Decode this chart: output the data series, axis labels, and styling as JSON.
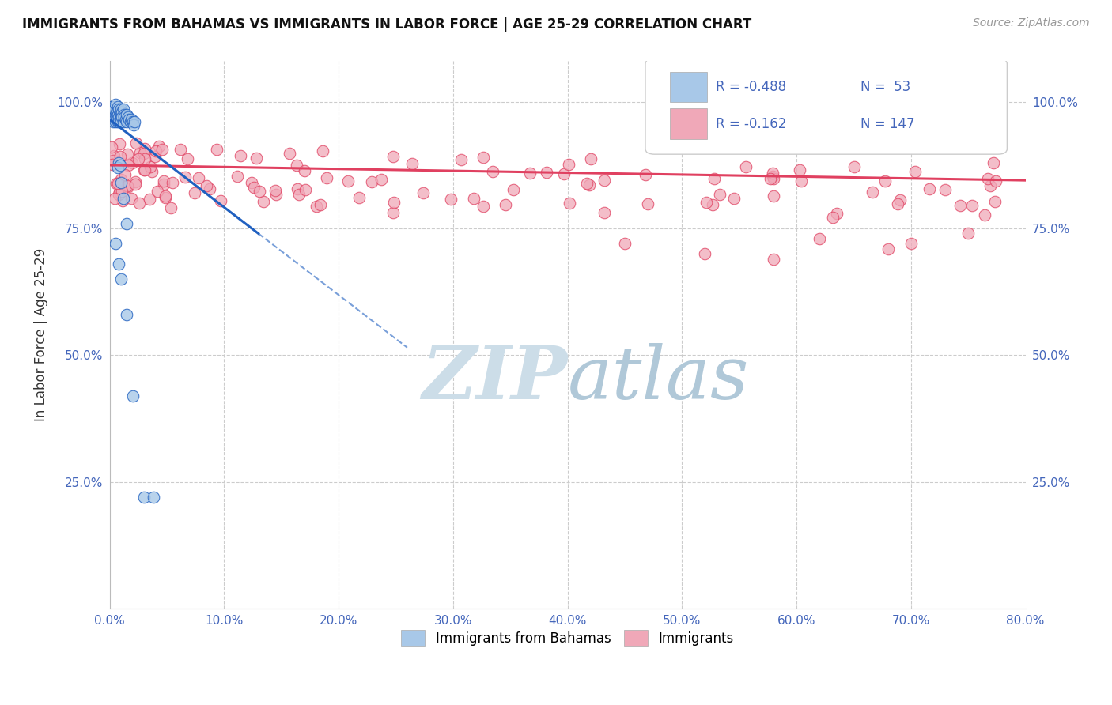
{
  "title": "IMMIGRANTS FROM BAHAMAS VS IMMIGRANTS IN LABOR FORCE | AGE 25-29 CORRELATION CHART",
  "source_text": "Source: ZipAtlas.com",
  "ylabel": "In Labor Force | Age 25-29",
  "xlim": [
    0.0,
    0.8
  ],
  "ylim": [
    0.0,
    1.08
  ],
  "x_tick_labels": [
    "0.0%",
    "10.0%",
    "20.0%",
    "30.0%",
    "40.0%",
    "50.0%",
    "60.0%",
    "70.0%",
    "80.0%"
  ],
  "x_tick_vals": [
    0.0,
    0.1,
    0.2,
    0.3,
    0.4,
    0.5,
    0.6,
    0.7,
    0.8
  ],
  "y_tick_labels": [
    "25.0%",
    "50.0%",
    "75.0%",
    "100.0%"
  ],
  "y_tick_vals": [
    0.25,
    0.5,
    0.75,
    1.0
  ],
  "legend_R1": "-0.488",
  "legend_N1": "53",
  "legend_R2": "-0.162",
  "legend_N2": "147",
  "blue_color": "#a8c8e8",
  "pink_color": "#f0a8b8",
  "blue_line_color": "#2060c0",
  "pink_line_color": "#e04060",
  "watermark_color": "#ccdde8",
  "bg_color": "#ffffff",
  "grid_color": "#cccccc",
  "tick_color": "#4466bb",
  "title_color": "#111111",
  "source_color": "#999999"
}
